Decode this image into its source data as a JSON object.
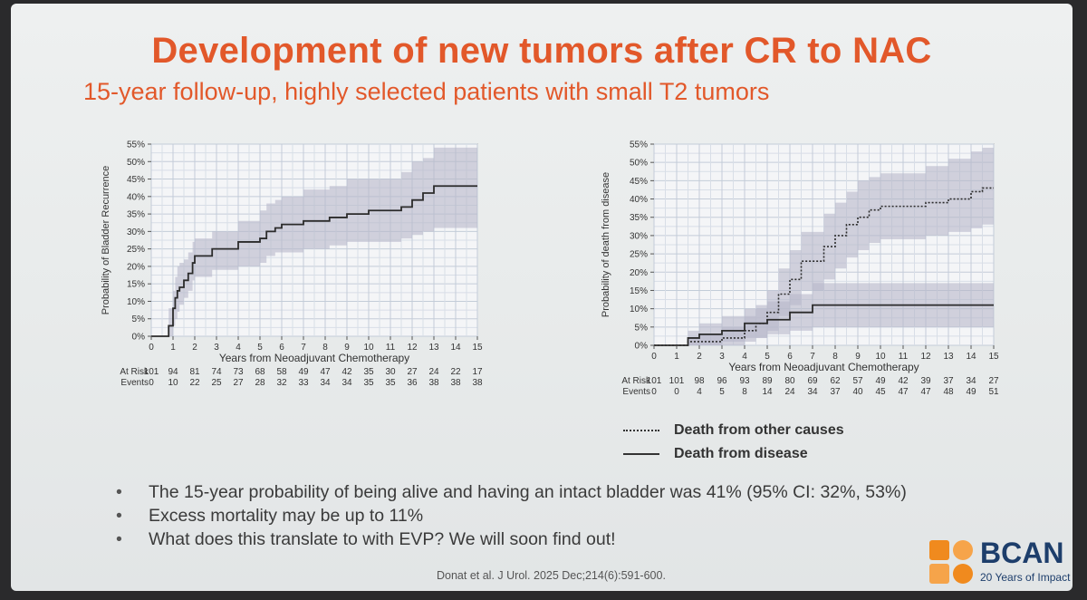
{
  "slide": {
    "title": "Development of new tumors after CR to NAC",
    "subtitle": "15-year follow-up, highly selected patients with small T2 tumors",
    "legend": [
      {
        "label": "Death from other causes",
        "style": "dotted"
      },
      {
        "label": "Death from disease",
        "style": "solid"
      }
    ],
    "bullets": [
      "The 15-year probability of being alive and having an intact bladder was 41% (95% CI: 32%, 53%)",
      "Excess mortality may be up to 11%",
      "What does this translate to with EVP? We will soon find out!"
    ],
    "citation": "Donat et al. J Urol. 2025 Dec;214(6):591-600.",
    "logo": {
      "text": "BCAN",
      "tagline": "20 Years of Impact",
      "color_orange": "#f08a1e",
      "color_navy": "#1d3e6b"
    }
  },
  "chart_data": [
    {
      "type": "line",
      "xlabel": "Years from Neoadjuvant Chemotherapy",
      "ylabel": "Probability of Bladder Recurrence",
      "xlim": [
        0,
        15
      ],
      "ylim": [
        0,
        55
      ],
      "xticks": [
        "0",
        "1",
        "2",
        "3",
        "4",
        "5",
        "6",
        "7",
        "8",
        "9",
        "10",
        "11",
        "12",
        "13",
        "14",
        "15"
      ],
      "yticks": [
        "0%",
        "5%",
        "10%",
        "15%",
        "20%",
        "25%",
        "30%",
        "35%",
        "40%",
        "45%",
        "50%",
        "55%"
      ],
      "series": [
        {
          "style": "solid",
          "x": [
            0,
            0.5,
            0.8,
            1.0,
            1.1,
            1.2,
            1.3,
            1.5,
            1.7,
            1.9,
            2.0,
            2.5,
            2.8,
            3.5,
            4.0,
            4.8,
            5.0,
            5.3,
            5.7,
            6.0,
            7.0,
            7.5,
            8.2,
            9.0,
            9.5,
            10.0,
            11.0,
            11.5,
            12.0,
            12.5,
            13.0,
            15.0
          ],
          "y": [
            0,
            0,
            3,
            8,
            11,
            13,
            14,
            16,
            18,
            21,
            23,
            23,
            25,
            25,
            27,
            27,
            28,
            30,
            31,
            32,
            33,
            33,
            34,
            35,
            35,
            36,
            36,
            37,
            39,
            41,
            43,
            43
          ],
          "lower": [
            0,
            0,
            0,
            3,
            5,
            7,
            9,
            11,
            13,
            16,
            17,
            17,
            19,
            19,
            20,
            20,
            21,
            23,
            24,
            24,
            25,
            25,
            26,
            27,
            27,
            27,
            27,
            28,
            29,
            30,
            31,
            31
          ],
          "upper": [
            0,
            0,
            8,
            13,
            17,
            20,
            21,
            22,
            24,
            27,
            28,
            28,
            30,
            30,
            33,
            33,
            36,
            38,
            39,
            40,
            42,
            42,
            43,
            45,
            45,
            45,
            45,
            47,
            50,
            51,
            54,
            54
          ]
        }
      ],
      "at_risk_label": "At Risk",
      "events_label": "Events",
      "at_risk": [
        "101",
        "94",
        "81",
        "74",
        "73",
        "68",
        "58",
        "49",
        "47",
        "42",
        "35",
        "30",
        "27",
        "24",
        "22",
        "17"
      ],
      "events": [
        "0",
        "10",
        "22",
        "25",
        "27",
        "28",
        "32",
        "33",
        "34",
        "34",
        "35",
        "35",
        "36",
        "38",
        "38",
        "38"
      ]
    },
    {
      "type": "line",
      "xlabel": "Years from Neoadjuvant Chemotherapy",
      "ylabel": "Probability of death from disease",
      "xlim": [
        0,
        15
      ],
      "ylim": [
        0,
        55
      ],
      "xticks": [
        "0",
        "1",
        "2",
        "3",
        "4",
        "5",
        "6",
        "7",
        "8",
        "9",
        "10",
        "11",
        "12",
        "13",
        "14",
        "15"
      ],
      "yticks": [
        "0%",
        "5%",
        "10%",
        "15%",
        "20%",
        "25%",
        "30%",
        "35%",
        "40%",
        "45%",
        "50%",
        "55%"
      ],
      "series": [
        {
          "style": "dotted",
          "x": [
            0,
            1.0,
            1.5,
            2.0,
            3.0,
            4.0,
            4.5,
            5.0,
            5.5,
            6.0,
            6.5,
            7.0,
            7.5,
            8.0,
            8.5,
            9.0,
            9.5,
            10.0,
            11.0,
            12.0,
            13.0,
            13.5,
            14.0,
            14.5,
            15.0
          ],
          "y": [
            0,
            0,
            1,
            1,
            2,
            4,
            6,
            9,
            14,
            18,
            23,
            23,
            27,
            30,
            33,
            35,
            37,
            38,
            38,
            39,
            40,
            40,
            42,
            43,
            43
          ],
          "lower": [
            0,
            0,
            0,
            0,
            0,
            1,
            2,
            4,
            8,
            11,
            15,
            15,
            18,
            21,
            24,
            26,
            28,
            29,
            29,
            30,
            31,
            31,
            32,
            33,
            33
          ],
          "upper": [
            0,
            0,
            2,
            3,
            5,
            8,
            11,
            15,
            21,
            26,
            31,
            31,
            36,
            39,
            42,
            45,
            46,
            47,
            47,
            49,
            51,
            51,
            53,
            54,
            54
          ]
        },
        {
          "style": "solid",
          "x": [
            0,
            1.0,
            1.5,
            2.0,
            3.0,
            4.0,
            5.0,
            6.0,
            7.0,
            15.0
          ],
          "y": [
            0,
            0,
            2,
            3,
            4,
            6,
            7,
            9,
            11,
            11
          ],
          "lower": [
            0,
            0,
            0,
            0,
            1,
            2,
            3,
            4,
            5,
            5
          ],
          "upper": [
            0,
            0,
            4,
            6,
            8,
            10,
            12,
            14,
            17,
            17
          ]
        }
      ],
      "at_risk_label": "At Risk",
      "events_label": "Events",
      "at_risk": [
        "101",
        "101",
        "98",
        "96",
        "93",
        "89",
        "80",
        "69",
        "62",
        "57",
        "49",
        "42",
        "39",
        "37",
        "34",
        "27"
      ],
      "events": [
        "0",
        "0",
        "4",
        "5",
        "8",
        "14",
        "24",
        "34",
        "37",
        "40",
        "45",
        "47",
        "47",
        "48",
        "49",
        "51"
      ]
    }
  ]
}
